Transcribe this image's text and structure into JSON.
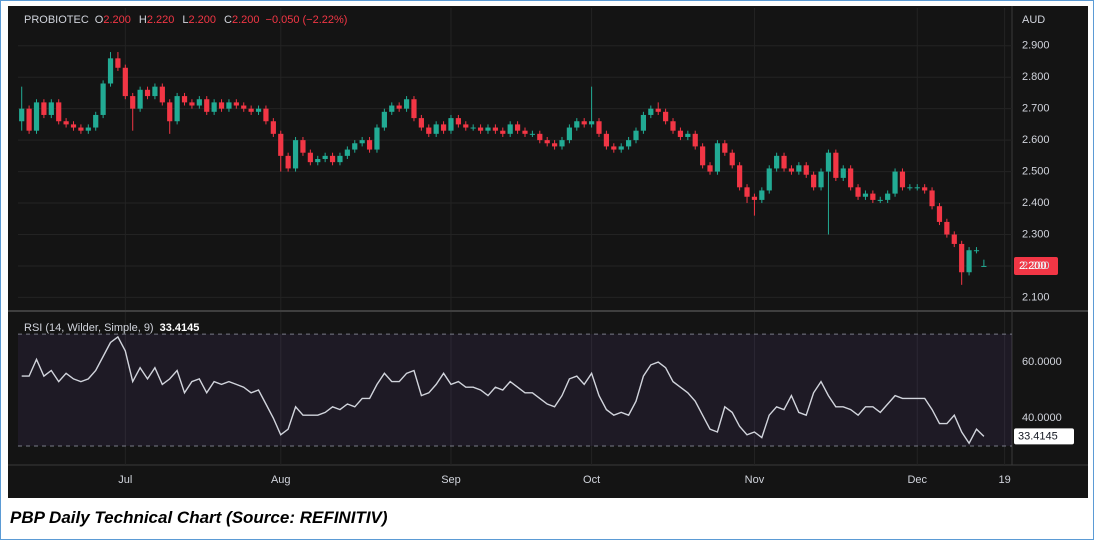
{
  "chart_data": [
    {
      "type": "candlestick",
      "title": "PROBIOTEC",
      "legend": [
        {
          "key": "O",
          "value": "2.200"
        },
        {
          "key": "H",
          "value": "2.220"
        },
        {
          "key": "L",
          "value": "2.200"
        },
        {
          "key": "C",
          "value": "2.200"
        }
      ],
      "change": "−0.050 (−2.22%)",
      "unit": "AUD",
      "up_color": "#22ab94",
      "down_color": "#f23645",
      "last_price": {
        "value": 2.2,
        "label": "2.200"
      },
      "xlim": [
        -0.5,
        133.8
      ],
      "ylim": [
        2.06,
        3.02
      ],
      "yticks": [
        {
          "value": 2.1,
          "label": "2.100"
        },
        {
          "value": 2.2,
          "label": "2.200"
        },
        {
          "value": 2.3,
          "label": "2.300"
        },
        {
          "value": 2.4,
          "label": "2.400"
        },
        {
          "value": 2.5,
          "label": "2.500"
        },
        {
          "value": 2.6,
          "label": "2.600"
        },
        {
          "value": 2.7,
          "label": "2.700"
        },
        {
          "value": 2.8,
          "label": "2.800"
        },
        {
          "value": 2.9,
          "label": "2.900"
        }
      ],
      "grid": true,
      "ohlc": [
        [
          2.66,
          2.77,
          2.63,
          2.7
        ],
        [
          2.7,
          2.71,
          2.62,
          2.63
        ],
        [
          2.63,
          2.73,
          2.62,
          2.72
        ],
        [
          2.72,
          2.73,
          2.67,
          2.68
        ],
        [
          2.68,
          2.73,
          2.67,
          2.72
        ],
        [
          2.72,
          2.73,
          2.65,
          2.66
        ],
        [
          2.66,
          2.67,
          2.64,
          2.65
        ],
        [
          2.65,
          2.66,
          2.63,
          2.64
        ],
        [
          2.64,
          2.65,
          2.62,
          2.63
        ],
        [
          2.63,
          2.65,
          2.62,
          2.64
        ],
        [
          2.64,
          2.69,
          2.63,
          2.68
        ],
        [
          2.68,
          2.79,
          2.67,
          2.78
        ],
        [
          2.78,
          2.88,
          2.77,
          2.86
        ],
        [
          2.86,
          2.88,
          2.82,
          2.83
        ],
        [
          2.83,
          2.84,
          2.73,
          2.74
        ],
        [
          2.74,
          2.75,
          2.63,
          2.7
        ],
        [
          2.7,
          2.77,
          2.69,
          2.76
        ],
        [
          2.76,
          2.77,
          2.73,
          2.74
        ],
        [
          2.74,
          2.78,
          2.73,
          2.77
        ],
        [
          2.77,
          2.78,
          2.71,
          2.72
        ],
        [
          2.72,
          2.73,
          2.62,
          2.66
        ],
        [
          2.66,
          2.75,
          2.65,
          2.74
        ],
        [
          2.74,
          2.75,
          2.71,
          2.72
        ],
        [
          2.72,
          2.73,
          2.7,
          2.71
        ],
        [
          2.71,
          2.74,
          2.7,
          2.73
        ],
        [
          2.73,
          2.74,
          2.68,
          2.69
        ],
        [
          2.69,
          2.73,
          2.68,
          2.72
        ],
        [
          2.72,
          2.73,
          2.69,
          2.7
        ],
        [
          2.7,
          2.73,
          2.69,
          2.72
        ],
        [
          2.72,
          2.73,
          2.7,
          2.71
        ],
        [
          2.71,
          2.72,
          2.69,
          2.7
        ],
        [
          2.7,
          2.71,
          2.68,
          2.69
        ],
        [
          2.69,
          2.71,
          2.68,
          2.7
        ],
        [
          2.7,
          2.71,
          2.65,
          2.66
        ],
        [
          2.66,
          2.67,
          2.61,
          2.62
        ],
        [
          2.62,
          2.63,
          2.5,
          2.55
        ],
        [
          2.55,
          2.56,
          2.5,
          2.51
        ],
        [
          2.51,
          2.61,
          2.5,
          2.6
        ],
        [
          2.6,
          2.61,
          2.55,
          2.56
        ],
        [
          2.56,
          2.57,
          2.52,
          2.53
        ],
        [
          2.53,
          2.55,
          2.52,
          2.54
        ],
        [
          2.54,
          2.56,
          2.53,
          2.55
        ],
        [
          2.55,
          2.56,
          2.52,
          2.53
        ],
        [
          2.53,
          2.56,
          2.52,
          2.55
        ],
        [
          2.55,
          2.58,
          2.54,
          2.57
        ],
        [
          2.57,
          2.6,
          2.56,
          2.59
        ],
        [
          2.59,
          2.61,
          2.58,
          2.6
        ],
        [
          2.6,
          2.61,
          2.56,
          2.57
        ],
        [
          2.57,
          2.65,
          2.56,
          2.64
        ],
        [
          2.64,
          2.7,
          2.63,
          2.69
        ],
        [
          2.69,
          2.72,
          2.68,
          2.71
        ],
        [
          2.71,
          2.72,
          2.69,
          2.7
        ],
        [
          2.7,
          2.74,
          2.69,
          2.73
        ],
        [
          2.73,
          2.74,
          2.66,
          2.67
        ],
        [
          2.67,
          2.68,
          2.63,
          2.64
        ],
        [
          2.64,
          2.65,
          2.61,
          2.62
        ],
        [
          2.62,
          2.66,
          2.61,
          2.65
        ],
        [
          2.65,
          2.66,
          2.62,
          2.63
        ],
        [
          2.63,
          2.68,
          2.62,
          2.67
        ],
        [
          2.67,
          2.68,
          2.64,
          2.65
        ],
        [
          2.65,
          2.66,
          2.63,
          2.64
        ],
        [
          2.64,
          2.65,
          2.63,
          2.64
        ],
        [
          2.64,
          2.65,
          2.62,
          2.63
        ],
        [
          2.63,
          2.65,
          2.62,
          2.64
        ],
        [
          2.64,
          2.65,
          2.62,
          2.63
        ],
        [
          2.63,
          2.64,
          2.61,
          2.62
        ],
        [
          2.62,
          2.66,
          2.61,
          2.65
        ],
        [
          2.65,
          2.66,
          2.62,
          2.63
        ],
        [
          2.63,
          2.64,
          2.61,
          2.62
        ],
        [
          2.62,
          2.63,
          2.61,
          2.62
        ],
        [
          2.62,
          2.63,
          2.59,
          2.6
        ],
        [
          2.6,
          2.61,
          2.58,
          2.59
        ],
        [
          2.59,
          2.6,
          2.57,
          2.58
        ],
        [
          2.58,
          2.61,
          2.57,
          2.6
        ],
        [
          2.6,
          2.65,
          2.59,
          2.64
        ],
        [
          2.64,
          2.67,
          2.63,
          2.66
        ],
        [
          2.66,
          2.67,
          2.64,
          2.65
        ],
        [
          2.65,
          2.77,
          2.64,
          2.66
        ],
        [
          2.66,
          2.67,
          2.61,
          2.62
        ],
        [
          2.62,
          2.63,
          2.57,
          2.58
        ],
        [
          2.58,
          2.59,
          2.56,
          2.57
        ],
        [
          2.57,
          2.59,
          2.56,
          2.58
        ],
        [
          2.58,
          2.61,
          2.57,
          2.6
        ],
        [
          2.6,
          2.64,
          2.59,
          2.63
        ],
        [
          2.63,
          2.69,
          2.62,
          2.68
        ],
        [
          2.68,
          2.71,
          2.67,
          2.7
        ],
        [
          2.7,
          2.72,
          2.68,
          2.69
        ],
        [
          2.69,
          2.7,
          2.65,
          2.66
        ],
        [
          2.66,
          2.67,
          2.62,
          2.63
        ],
        [
          2.63,
          2.64,
          2.6,
          2.61
        ],
        [
          2.61,
          2.63,
          2.6,
          2.62
        ],
        [
          2.62,
          2.63,
          2.57,
          2.58
        ],
        [
          2.58,
          2.59,
          2.51,
          2.52
        ],
        [
          2.52,
          2.53,
          2.49,
          2.5
        ],
        [
          2.5,
          2.6,
          2.49,
          2.59
        ],
        [
          2.59,
          2.6,
          2.55,
          2.56
        ],
        [
          2.56,
          2.57,
          2.51,
          2.52
        ],
        [
          2.52,
          2.53,
          2.44,
          2.45
        ],
        [
          2.45,
          2.46,
          2.4,
          2.42
        ],
        [
          2.42,
          2.43,
          2.36,
          2.41
        ],
        [
          2.41,
          2.45,
          2.4,
          2.44
        ],
        [
          2.44,
          2.52,
          2.43,
          2.51
        ],
        [
          2.51,
          2.56,
          2.5,
          2.55
        ],
        [
          2.55,
          2.56,
          2.5,
          2.51
        ],
        [
          2.51,
          2.52,
          2.49,
          2.5
        ],
        [
          2.5,
          2.53,
          2.49,
          2.52
        ],
        [
          2.52,
          2.53,
          2.48,
          2.49
        ],
        [
          2.49,
          2.5,
          2.44,
          2.45
        ],
        [
          2.45,
          2.51,
          2.44,
          2.5
        ],
        [
          2.5,
          2.57,
          2.3,
          2.56
        ],
        [
          2.56,
          2.57,
          2.47,
          2.48
        ],
        [
          2.48,
          2.52,
          2.47,
          2.51
        ],
        [
          2.51,
          2.52,
          2.44,
          2.45
        ],
        [
          2.45,
          2.46,
          2.41,
          2.42
        ],
        [
          2.42,
          2.44,
          2.41,
          2.43
        ],
        [
          2.43,
          2.44,
          2.4,
          2.41
        ],
        [
          2.41,
          2.42,
          2.4,
          2.41
        ],
        [
          2.41,
          2.44,
          2.4,
          2.43
        ],
        [
          2.43,
          2.51,
          2.42,
          2.5
        ],
        [
          2.5,
          2.51,
          2.44,
          2.45
        ],
        [
          2.45,
          2.46,
          2.44,
          2.45
        ],
        [
          2.45,
          2.46,
          2.44,
          2.45
        ],
        [
          2.45,
          2.46,
          2.43,
          2.44
        ],
        [
          2.44,
          2.45,
          2.38,
          2.39
        ],
        [
          2.39,
          2.4,
          2.33,
          2.34
        ],
        [
          2.34,
          2.35,
          2.29,
          2.3
        ],
        [
          2.3,
          2.31,
          2.26,
          2.27
        ],
        [
          2.27,
          2.28,
          2.14,
          2.18
        ],
        [
          2.18,
          2.26,
          2.17,
          2.25
        ],
        [
          2.25,
          2.26,
          2.24,
          2.25
        ],
        [
          2.2,
          2.22,
          2.2,
          2.2
        ]
      ]
    },
    {
      "type": "line",
      "title": "RSI (14, Wilder, Simple, 9)",
      "color": "#d1d4dc",
      "xlim": [
        -0.5,
        133.8
      ],
      "ylim": [
        23.2,
        77.9
      ],
      "yticks": [
        {
          "value": 40,
          "label": "40.0000"
        },
        {
          "value": 60,
          "label": "60.0000"
        }
      ],
      "bands": [
        30,
        70
      ],
      "xticks": [
        {
          "value": 14,
          "label": "Jul"
        },
        {
          "value": 35,
          "label": "Aug"
        },
        {
          "value": 58,
          "label": "Sep"
        },
        {
          "value": 77,
          "label": "Oct"
        },
        {
          "value": 99,
          "label": "Nov"
        },
        {
          "value": 121,
          "label": "Dec"
        },
        {
          "value": 132.8,
          "label": "19"
        }
      ],
      "values": [
        55,
        55,
        61,
        55,
        57,
        53,
        56,
        54,
        53,
        54,
        57,
        62,
        67,
        69,
        64,
        53,
        58,
        54,
        58,
        52,
        54,
        57,
        49,
        53,
        54,
        49,
        53,
        52,
        53,
        52,
        51,
        49,
        50,
        45,
        40,
        34,
        36,
        44,
        41,
        41,
        41,
        42,
        44,
        43,
        45,
        44,
        47,
        47,
        52,
        56,
        53,
        53,
        56,
        57,
        48,
        49,
        52,
        56,
        52,
        53,
        51,
        51,
        50,
        48,
        51,
        50,
        53,
        51,
        49,
        49,
        47,
        45,
        44,
        48,
        54,
        55,
        52,
        56,
        48,
        43,
        41,
        42,
        41,
        46,
        55,
        59,
        60,
        58,
        53,
        51,
        49,
        46,
        41,
        36,
        35,
        44,
        42,
        37,
        34,
        35,
        33,
        41,
        44,
        43,
        48,
        42,
        41,
        49,
        53,
        48,
        44,
        44,
        43,
        41,
        44,
        44,
        42,
        45,
        48,
        47,
        47,
        47,
        47,
        43,
        38,
        38,
        41,
        35,
        31,
        36,
        33.4145
      ]
    }
  ]
}
